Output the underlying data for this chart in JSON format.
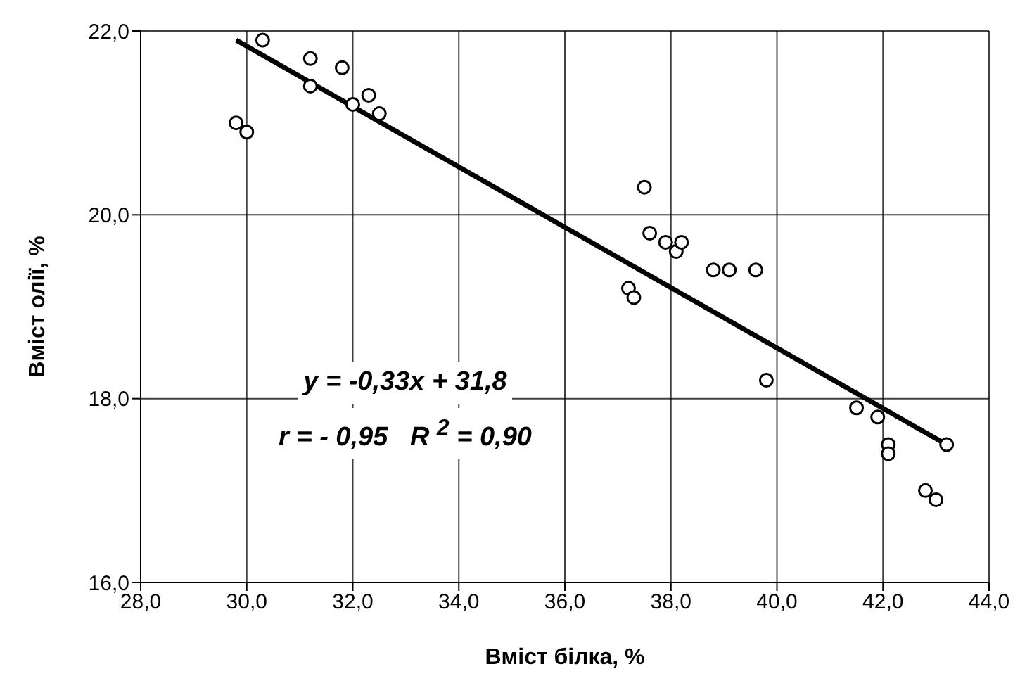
{
  "chart_data": {
    "type": "scatter",
    "xlabel": "Вміст білка, %",
    "ylabel": "Вміст олії, %",
    "xlim": [
      28,
      44
    ],
    "ylim": [
      16,
      22
    ],
    "xticks": [
      {
        "value": 28,
        "label": "28,0"
      },
      {
        "value": 30,
        "label": "30,0"
      },
      {
        "value": 32,
        "label": "32,0"
      },
      {
        "value": 34,
        "label": "34,0"
      },
      {
        "value": 36,
        "label": "36,0"
      },
      {
        "value": 38,
        "label": "38,0"
      },
      {
        "value": 40,
        "label": "40,0"
      },
      {
        "value": 42,
        "label": "42,0"
      },
      {
        "value": 44,
        "label": "44,0"
      }
    ],
    "yticks": [
      {
        "value": 16,
        "label": "16,0"
      },
      {
        "value": 18,
        "label": "18,0"
      },
      {
        "value": 20,
        "label": "20,0"
      },
      {
        "value": 22,
        "label": "22,0"
      }
    ],
    "grid": true,
    "marker": "circle",
    "series": [
      {
        "color": "#000000",
        "x": [
          29.8,
          30.0,
          30.3,
          31.2,
          31.2,
          31.8,
          32.0,
          32.3,
          32.5,
          37.5,
          37.6,
          37.9,
          38.1,
          38.2,
          37.2,
          37.3,
          38.8,
          39.1,
          39.6,
          39.8,
          41.5,
          41.9,
          42.1,
          42.1,
          42.8,
          43.0,
          43.2
        ],
        "values": [
          21.0,
          20.9,
          21.9,
          21.7,
          21.4,
          21.6,
          21.2,
          21.3,
          21.1,
          20.3,
          19.8,
          19.7,
          19.6,
          19.7,
          19.2,
          19.1,
          19.4,
          19.4,
          19.4,
          18.2,
          17.9,
          17.8,
          17.5,
          17.4,
          17.0,
          16.9,
          17.5
        ]
      },
      {
        "type": "line",
        "color": "#000000",
        "line_style": "solid",
        "marker": "none",
        "x": [
          29.8,
          43.2
        ],
        "values": [
          21.9,
          17.5
        ]
      }
    ],
    "annotations": [
      "y = -0,33x + 31,8",
      "r = - 0,95   R $^{2}$ = 0,90"
    ]
  }
}
